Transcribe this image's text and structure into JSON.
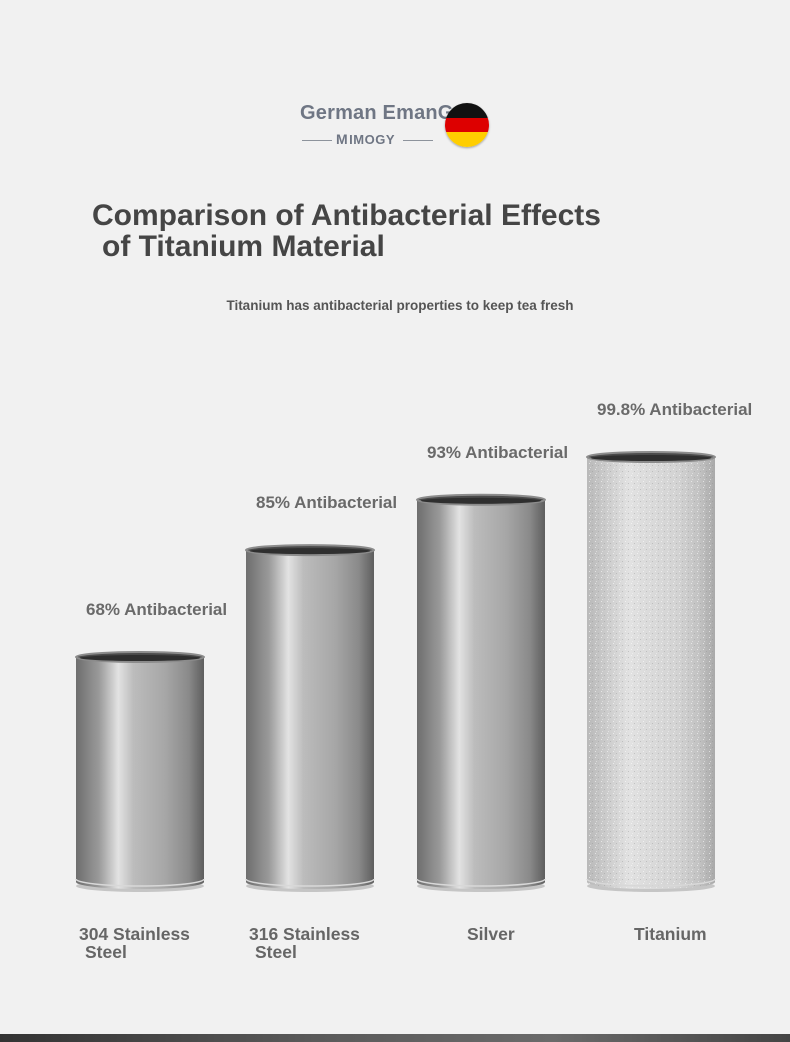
{
  "brand": {
    "name": "German EmanG",
    "sub_name": "IMOGY",
    "sub_mark": "M",
    "flag": [
      "#111111",
      "#dd0000",
      "#ffce00"
    ]
  },
  "heading": {
    "title_line1": "Comparison of Antibacterial Effects",
    "title_line2": "of Titanium Material",
    "subtitle": "Titanium has antibacterial properties to keep tea fresh"
  },
  "chart_data": {
    "type": "bar",
    "title": "",
    "xlabel": "",
    "ylabel": "",
    "categories": [
      [
        "304 Stainless",
        "Steel"
      ],
      [
        "316 Stainless",
        "Steel"
      ],
      [
        "Silver"
      ],
      [
        "Titanium"
      ]
    ],
    "values": [
      68,
      85,
      93,
      99.8
    ],
    "value_labels": [
      "68% Antibacterial",
      "85% Antibacterial",
      "93% Antibacterial",
      "99.8% Antibacterial"
    ],
    "unit": "%",
    "bar_style": "metal cylinder canisters",
    "colors": [
      "#9b9b9b",
      "#a3a3a3",
      "#adadad",
      "#d0d0d0"
    ],
    "grid": false,
    "legend": "none"
  }
}
